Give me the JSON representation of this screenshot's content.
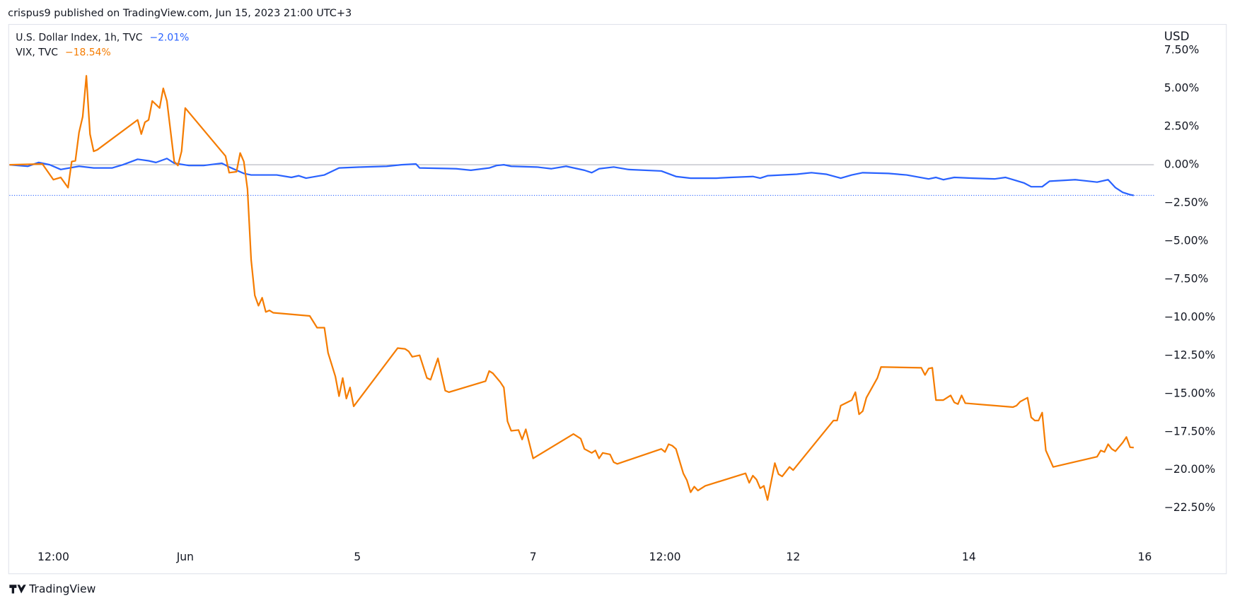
{
  "header": "crispus9 published on TradingView.com, Jun 15, 2023 21:00 UTC+3",
  "footer": "TradingView",
  "chart_data": {
    "type": "line",
    "y_axis_label": "USD",
    "xlim": [
      0,
      312.5
    ],
    "xticks": [
      {
        "value": 12,
        "label": "12:00"
      },
      {
        "value": 48,
        "label": "Jun"
      },
      {
        "value": 95,
        "label": "5"
      },
      {
        "value": 143,
        "label": "7"
      },
      {
        "value": 179,
        "label": "12:00"
      },
      {
        "value": 214,
        "label": "12"
      },
      {
        "value": 262,
        "label": "14"
      },
      {
        "value": 310,
        "label": "16"
      }
    ],
    "ylim": [
      -24.8,
      9.2
    ],
    "yticks": [
      {
        "value": 7.5,
        "label": "7.50%"
      },
      {
        "value": 5,
        "label": "5.00%"
      },
      {
        "value": 2.5,
        "label": "2.50%"
      },
      {
        "value": 0,
        "label": "0.00%"
      },
      {
        "value": -2.5,
        "label": "−2.50%"
      },
      {
        "value": -5,
        "label": "−5.00%"
      },
      {
        "value": -7.5,
        "label": "−7.50%"
      },
      {
        "value": -10,
        "label": "−10.00%"
      },
      {
        "value": -12.5,
        "label": "−12.50%"
      },
      {
        "value": -15,
        "label": "−15.00%"
      },
      {
        "value": -17.5,
        "label": "−17.50%"
      },
      {
        "value": -20,
        "label": "−20.00%"
      },
      {
        "value": -22.5,
        "label": "−22.50%"
      }
    ],
    "series": [
      {
        "name": "U.S. Dollar Index, 1h, TVC",
        "change_label": "−2.01%",
        "color": "#2962ff",
        "x": [
          0,
          5,
          8,
          11,
          14,
          19,
          23,
          28,
          31,
          35,
          38,
          40,
          43,
          45,
          49,
          53,
          58,
          60,
          64,
          66,
          73,
          77,
          79,
          81,
          86,
          90,
          96,
          103,
          107,
          111,
          112,
          122,
          126,
          131,
          133,
          135,
          137,
          144,
          148,
          152,
          157,
          159,
          161,
          165,
          169,
          178,
          182,
          186,
          193,
          197,
          203,
          205,
          207,
          215,
          219,
          223,
          227,
          230,
          233,
          240,
          245,
          251,
          253,
          255,
          258,
          263,
          269,
          272,
          277,
          279,
          282,
          284,
          291,
          297,
          300,
          302,
          304,
          306,
          307
        ],
        "values": [
          0,
          -0.1,
          0.15,
          0,
          -0.31,
          -0.1,
          -0.21,
          -0.21,
          0,
          0.36,
          0.26,
          0.15,
          0.41,
          0.1,
          -0.05,
          -0.05,
          0.1,
          -0.15,
          -0.57,
          -0.67,
          -0.67,
          -0.83,
          -0.72,
          -0.88,
          -0.67,
          -0.21,
          -0.15,
          -0.1,
          0,
          0.05,
          -0.21,
          -0.26,
          -0.36,
          -0.21,
          -0.05,
          0,
          -0.1,
          -0.15,
          -0.26,
          -0.1,
          -0.36,
          -0.52,
          -0.26,
          -0.15,
          -0.31,
          -0.41,
          -0.77,
          -0.88,
          -0.88,
          -0.83,
          -0.77,
          -0.88,
          -0.72,
          -0.62,
          -0.52,
          -0.62,
          -0.88,
          -0.67,
          -0.52,
          -0.57,
          -0.67,
          -0.93,
          -0.83,
          -0.98,
          -0.83,
          -0.88,
          -0.93,
          -0.83,
          -1.19,
          -1.44,
          -1.44,
          -1.08,
          -0.98,
          -1.14,
          -0.98,
          -1.5,
          -1.81,
          -1.96,
          -2.01
        ]
      },
      {
        "name": "VIX, TVC",
        "change_label": "−18.54%",
        "color": "#f57c00",
        "x": [
          0,
          9,
          12,
          14,
          16,
          17,
          18,
          19,
          20,
          21,
          22,
          23,
          24,
          35,
          36,
          37,
          38,
          39,
          41,
          42,
          43,
          45,
          46,
          47,
          48,
          59,
          60,
          62,
          63,
          64,
          65,
          66,
          67,
          68,
          69,
          70,
          71,
          72,
          82,
          84,
          86,
          87,
          89,
          90,
          91,
          92,
          93,
          94,
          106,
          108,
          109,
          110,
          112,
          114,
          115,
          117,
          119,
          120,
          130,
          131,
          132,
          134,
          135,
          136,
          137,
          139,
          140,
          141,
          143,
          154,
          156,
          157,
          159,
          160,
          161,
          162,
          164,
          165,
          166,
          178,
          179,
          180,
          181,
          182,
          184,
          185,
          186,
          187,
          188,
          190,
          201,
          202,
          203,
          204,
          205,
          206,
          207,
          209,
          210,
          211,
          213,
          214,
          225,
          226,
          227,
          230,
          231,
          232,
          233,
          234,
          237,
          238,
          249,
          250,
          251,
          252,
          253,
          255,
          257,
          258,
          259,
          260,
          261,
          274,
          275,
          276,
          278,
          279,
          280,
          281,
          282,
          283,
          285,
          297,
          298,
          299,
          300,
          301,
          302,
          304,
          305,
          306,
          307
        ],
        "values": [
          0,
          0.05,
          -0.98,
          -0.83,
          -1.5,
          0.21,
          0.26,
          2.12,
          3.15,
          5.83,
          2.01,
          0.88,
          0.98,
          2.94,
          2.01,
          2.79,
          2.94,
          4.18,
          3.72,
          5.01,
          4.18,
          0.21,
          -0.05,
          0.88,
          3.72,
          0.57,
          -0.52,
          -0.46,
          0.77,
          0.21,
          -1.6,
          -6.24,
          -8.57,
          -9.24,
          -8.72,
          -9.65,
          -9.55,
          -9.7,
          -9.91,
          -10.68,
          -10.68,
          -12.33,
          -13.88,
          -15.17,
          -13.98,
          -15.33,
          -14.6,
          -15.84,
          -12.02,
          -12.07,
          -12.23,
          -12.59,
          -12.49,
          -13.98,
          -14.09,
          -12.69,
          -14.81,
          -14.91,
          -14.19,
          -13.52,
          -13.67,
          -14.24,
          -14.6,
          -16.82,
          -17.44,
          -17.39,
          -18.01,
          -17.34,
          -19.25,
          -17.65,
          -17.96,
          -18.63,
          -18.89,
          -18.73,
          -19.25,
          -18.89,
          -18.99,
          -19.5,
          -19.61,
          -18.63,
          -18.83,
          -18.32,
          -18.42,
          -18.63,
          -20.23,
          -20.69,
          -21.47,
          -21.1,
          -21.36,
          -21.05,
          -20.23,
          -20.85,
          -20.38,
          -20.64,
          -21.21,
          -21.05,
          -21.98,
          -19.56,
          -20.28,
          -20.43,
          -19.81,
          -20.02,
          -16.77,
          -16.77,
          -15.79,
          -15.43,
          -14.91,
          -16.36,
          -16.15,
          -15.27,
          -13.98,
          -13.26,
          -13.31,
          -13.78,
          -13.36,
          -13.31,
          -15.43,
          -15.43,
          -15.12,
          -15.58,
          -15.69,
          -15.12,
          -15.63,
          -15.89,
          -15.79,
          -15.53,
          -15.27,
          -16.56,
          -16.77,
          -16.77,
          -16.25,
          -18.73,
          -19.81,
          -19.14,
          -18.73,
          -18.83,
          -18.32,
          -18.63,
          -18.78,
          -18.21,
          -17.85,
          -18.52,
          -18.54
        ]
      }
    ]
  }
}
